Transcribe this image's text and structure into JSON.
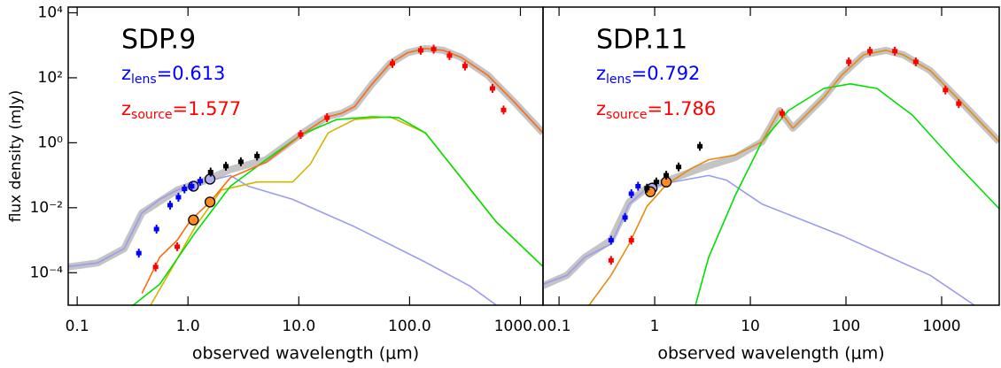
{
  "chart_data": [
    {
      "type": "sed",
      "title": "SDP.9",
      "annotations": [
        {
          "parts": [
            "z",
            "lens",
            "=0.613"
          ],
          "color": "#0000ff"
        },
        {
          "parts": [
            "z",
            "source",
            "=1.577"
          ],
          "color": "#ff0000"
        }
      ],
      "xlabel": "observed wavelength (μm)",
      "ylabel": "flux density (mJy)",
      "xlog": true,
      "ylog": true,
      "xlim": [
        0.083,
        1600
      ],
      "ylim": [
        1e-05,
        15000
      ],
      "xticks": [
        0.1,
        {
          "value": 1,
          "label": "1.0"
        },
        {
          "value": 10,
          "label": "10.0"
        },
        {
          "value": 100,
          "label": "100.0"
        },
        {
          "value": 1000,
          "label": "1000.0"
        }
      ],
      "yticks": [
        {
          "value": 0.0001,
          "label": "10⁻⁴"
        },
        {
          "value": 0.01,
          "label": "10⁻²"
        },
        {
          "value": 1,
          "label": "10⁰"
        },
        {
          "value": 100,
          "label": "10²"
        },
        {
          "value": 10000,
          "label": "10⁴"
        }
      ],
      "series": [
        {
          "style": "band",
          "color": "#c4c4c4",
          "x": [
            0.083,
            0.153,
            0.265,
            0.384,
            0.8,
            1.39,
            2.42,
            5.06,
            10.6,
            18.4,
            24.2,
            31.9,
            46,
            66.7,
            96,
            139,
            201,
            291,
            506,
            879,
            1600
          ],
          "values": [
            0.00015,
            0.0002,
            0.00055,
            0.0069,
            0.035,
            0.066,
            0.15,
            0.3,
            1.9,
            6.5,
            8,
            13,
            65,
            275,
            590,
            800,
            700,
            430,
            120,
            18,
            2.0
          ]
        },
        {
          "style": "line",
          "color": "#9b9bef",
          "x": [
            0.083,
            0.153,
            0.265,
            0.384,
            0.555,
            0.8,
            1.39,
            2.42,
            3.5,
            8.8,
            31.9,
            139,
            350,
            608
          ],
          "values": [
            0.000155,
            0.0002,
            0.00055,
            0.0069,
            0.018,
            0.035,
            0.062,
            0.098,
            0.046,
            0.018,
            0.0026,
            0.00021,
            3.9e-05,
            1e-05
          ]
        },
        {
          "style": "line",
          "color": "#d4b400",
          "x": [
            0.46,
            0.73,
            1.16,
            2.0,
            4.2,
            8.8,
            12.7,
            18.4,
            31.9,
            66.7,
            139,
            608,
            1600
          ],
          "values": [
            1e-05,
            0.000155,
            0.0026,
            0.035,
            0.062,
            0.062,
            0.22,
            2.0,
            5.2,
            6.3,
            2.0,
            0.0036,
            0.000155
          ]
        },
        {
          "style": "line",
          "color": "#00e000",
          "x": [
            0.32,
            0.555,
            1.16,
            2.42,
            5.06,
            10.6,
            22,
            46,
            80,
            139,
            291,
            608,
            1600
          ],
          "values": [
            1e-05,
            4.4e-05,
            0.0017,
            0.046,
            0.3,
            1.8,
            5.2,
            6.3,
            5.9,
            2.0,
            0.085,
            0.0036,
            0.000155
          ]
        },
        {
          "style": "line",
          "color": "#ff6a10",
          "x": [
            0.384,
            0.555,
            0.8,
            1.06,
            1.58,
            2.42,
            5.06,
            10.6,
            18.4,
            24.2,
            31.9,
            46,
            66.7,
            96,
            139,
            201,
            291,
            506,
            879,
            1600
          ],
          "values": [
            2.3e-05,
            0.0003,
            0.001,
            0.0042,
            0.015,
            0.085,
            0.25,
            1.8,
            6.3,
            8,
            13,
            65,
            275,
            590,
            800,
            700,
            430,
            120,
            18,
            2.0
          ]
        },
        {
          "style": "circle",
          "color": "#b0b0f0",
          "x": [
            1.12,
            1.58
          ],
          "values": [
            0.046,
            0.076
          ]
        },
        {
          "style": "circle",
          "color": "#ff8c20",
          "x": [
            1.12,
            1.58
          ],
          "values": [
            0.0042,
            0.015
          ]
        },
        {
          "style": "point",
          "color": "#0000ff",
          "x": [
            0.36,
            0.52,
            0.69,
            0.82,
            0.93,
            1.08,
            1.29
          ],
          "values": [
            0.0004,
            0.0022,
            0.012,
            0.021,
            0.038,
            0.046,
            0.066
          ]
        },
        {
          "style": "point",
          "color": "#000000",
          "x": [
            1.6,
            2.2,
            3.0,
            4.2
          ],
          "values": [
            0.125,
            0.19,
            0.26,
            0.39
          ]
        },
        {
          "style": "point",
          "color": "#ff0000",
          "x": [
            0.51,
            0.8,
            10.4,
            18,
            70,
            126,
            165,
            229,
            316,
            560,
            705
          ],
          "values": [
            0.00015,
            0.00063,
            1.8,
            5.9,
            275,
            700,
            760,
            480,
            230,
            47,
            10.2
          ]
        }
      ]
    },
    {
      "type": "sed",
      "title": "SDP.11",
      "annotations": [
        {
          "parts": [
            "z",
            "lens",
            "=0.792"
          ],
          "color": "#0000ff"
        },
        {
          "parts": [
            "z",
            "source",
            "=1.786"
          ],
          "color": "#ff0000"
        }
      ],
      "xlabel": "observed wavelength (μm)",
      "xlog": true,
      "ylog": true,
      "xlim": [
        0.068,
        4000
      ],
      "ylim": [
        1e-05,
        15000
      ],
      "xticks": [
        0.1,
        1,
        10,
        100,
        1000
      ],
      "series": [
        {
          "style": "band",
          "color": "#c4c4c4",
          "x": [
            0.068,
            0.121,
            0.186,
            0.35,
            0.54,
            0.83,
            1.56,
            2.97,
            6.96,
            13.2,
            20.2,
            27.8,
            38.3,
            58.7,
            90,
            153,
            261,
            398,
            759,
            1778,
            4000
          ],
          "values": [
            4e-05,
            8.3e-05,
            0.0003,
            0.001,
            0.015,
            0.04,
            0.08,
            0.16,
            0.35,
            1.07,
            9.8,
            2.8,
            7.1,
            25,
            120,
            510,
            700,
            510,
            166,
            13,
            1.07
          ]
        },
        {
          "style": "line",
          "color": "#9b9bef",
          "x": [
            0.068,
            0.121,
            0.186,
            0.35,
            0.54,
            0.83,
            1.56,
            3.67,
            5.62,
            13.2,
            90,
            759,
            2200
          ],
          "values": [
            4.4e-05,
            8.3e-05,
            0.0003,
            0.00076,
            0.013,
            0.04,
            0.062,
            0.098,
            0.071,
            0.013,
            0.0014,
            8.3e-05,
            1e-05
          ]
        },
        {
          "style": "line",
          "color": "#00e000",
          "x": [
            2.67,
            3.67,
            6.96,
            13.2,
            25,
            58.7,
            111,
            211,
            495,
            1436,
            4000
          ],
          "values": [
            1e-05,
            0.0003,
            0.024,
            1.07,
            9.8,
            47,
            65,
            47,
            7.1,
            0.22,
            0.0093
          ]
        },
        {
          "style": "line",
          "color": "#e88a10",
          "x": [
            0.206,
            0.35,
            0.54,
            0.83,
            1.32,
            2.4,
            3.67,
            6.96,
            13.2,
            20.2,
            27.8,
            38.3,
            58.7,
            90,
            153,
            261,
            398,
            759,
            1778,
            4000
          ],
          "values": [
            1e-05,
            8.3e-05,
            0.00076,
            0.011,
            0.051,
            0.16,
            0.3,
            0.42,
            1.07,
            9.8,
            2.8,
            7.1,
            25,
            120,
            510,
            700,
            510,
            166,
            13,
            1.07
          ]
        },
        {
          "style": "circle",
          "color": "#b0b0f0",
          "x": [
            0.94
          ],
          "values": [
            0.04
          ]
        },
        {
          "style": "circle",
          "color": "#ff8c20",
          "x": [
            0.9,
            1.32
          ],
          "values": [
            0.031,
            0.062
          ]
        },
        {
          "style": "point",
          "color": "#0000ff",
          "x": [
            0.35,
            0.49,
            0.57,
            0.67
          ],
          "values": [
            0.001,
            0.005,
            0.027,
            0.046
          ]
        },
        {
          "style": "point",
          "color": "#000000",
          "x": [
            0.83,
            1.04,
            1.32,
            1.78,
            2.97
          ],
          "values": [
            0.04,
            0.062,
            0.1,
            0.18,
            0.78
          ]
        },
        {
          "style": "point",
          "color": "#ff0000",
          "x": [
            0.35,
            0.57,
            21.5,
            107,
            178,
            324,
            537,
            1096,
            1510
          ],
          "values": [
            0.00024,
            0.001,
            8,
            310,
            660,
            660,
            310,
            42,
            16
          ]
        }
      ]
    }
  ]
}
